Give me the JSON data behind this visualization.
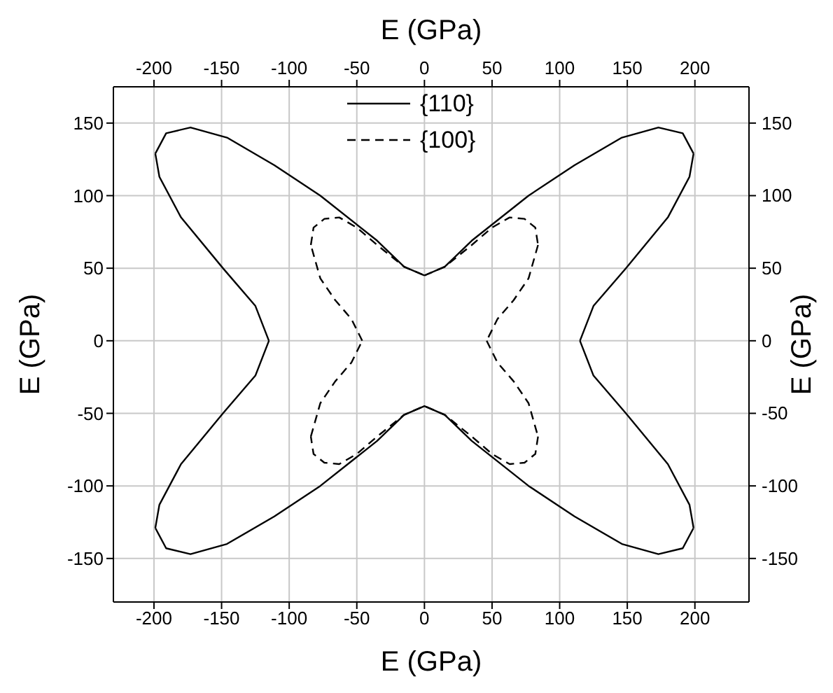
{
  "chart_data": {
    "type": "line",
    "xlabel": "E (GPa)",
    "x2label": "E (GPa)",
    "ylabel": "E (GPa)",
    "y2label": "E (GPa)",
    "xlim": [
      -230,
      240
    ],
    "xticks": [
      -200,
      -150,
      -100,
      -50,
      0,
      50,
      100,
      150,
      200
    ],
    "x2lim": [
      -230,
      240
    ],
    "x2ticks": [
      -200,
      -150,
      -100,
      -50,
      0,
      50,
      100,
      150,
      200
    ],
    "ylim": [
      -180,
      175
    ],
    "yticks": [
      -150,
      -100,
      -50,
      0,
      50,
      100,
      150
    ],
    "y2lim": [
      -180,
      175
    ],
    "y2ticks": [
      -150,
      -100,
      -50,
      0,
      50,
      100,
      150
    ],
    "grid": true,
    "legend": "top",
    "series": [
      {
        "name": "{110}",
        "color": "#000000",
        "line_style": "solid",
        "x": [
          0,
          15,
          35,
          77,
          111,
          146,
          173,
          191,
          199,
          null,
          199,
          196,
          180,
          149,
          125,
          115,
          null,
          115,
          125,
          149,
          180,
          196,
          199,
          null,
          199,
          191,
          173,
          146,
          111,
          77,
          35,
          15,
          0,
          -15,
          -35,
          -77,
          -111,
          -146,
          -173,
          -191,
          -199,
          null,
          -199,
          -196,
          -180,
          -149,
          -125,
          -115,
          null,
          -115,
          -125,
          -149,
          -180,
          -196,
          -199,
          null,
          -199,
          -191,
          -173,
          -146,
          -111,
          -77,
          -35,
          -15,
          0
        ],
        "values": [
          45,
          51,
          69,
          100,
          121,
          140,
          147,
          143,
          129,
          null,
          129,
          113,
          85,
          50,
          24,
          0,
          null,
          0,
          -24,
          -50,
          -85,
          -113,
          -129,
          null,
          -129,
          -143,
          -147,
          -140,
          -121,
          -100,
          -69,
          -51,
          -45,
          -51,
          -69,
          -100,
          -121,
          -140,
          -147,
          -143,
          -129,
          null,
          -129,
          -113,
          -85,
          -50,
          -24,
          0,
          null,
          0,
          24,
          50,
          85,
          113,
          129,
          null,
          129,
          143,
          147,
          140,
          121,
          100,
          69,
          51,
          45
        ]
      },
      {
        "name": "{100}",
        "color": "#000000",
        "line_style": "dashed",
        "x": [
          0,
          15,
          35,
          50,
          63,
          74,
          82,
          84,
          null,
          84,
          77,
          66,
          54,
          46,
          null,
          46,
          54,
          66,
          77,
          84,
          null,
          84,
          82,
          74,
          63,
          50,
          35,
          15,
          0,
          -15,
          -35,
          -50,
          -63,
          -74,
          -82,
          -84,
          null,
          -84,
          -77,
          -66,
          -54,
          -46,
          null,
          -46,
          -54,
          -66,
          -77,
          -84,
          null,
          -84,
          -82,
          -74,
          -63,
          -50,
          -35,
          -15,
          0
        ],
        "values": [
          45,
          51,
          66,
          78,
          85,
          84,
          78,
          66,
          null,
          66,
          43,
          28,
          15,
          0,
          null,
          0,
          -15,
          -28,
          -43,
          -66,
          null,
          -66,
          -78,
          -84,
          -85,
          -78,
          -66,
          -51,
          -45,
          -51,
          -66,
          -78,
          -85,
          -84,
          -78,
          -66,
          null,
          -66,
          -43,
          -28,
          -15,
          0,
          null,
          0,
          15,
          28,
          43,
          66,
          null,
          66,
          78,
          84,
          85,
          78,
          66,
          51,
          45
        ]
      }
    ]
  }
}
